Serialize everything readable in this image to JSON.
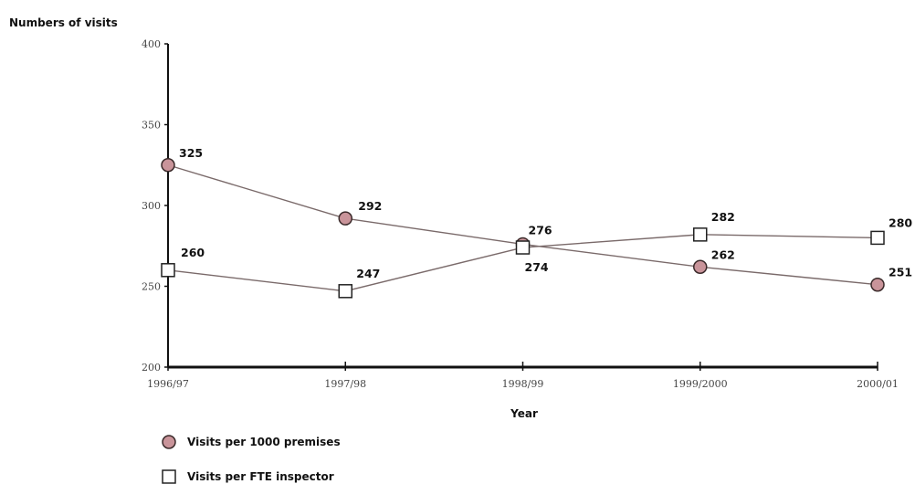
{
  "chart_data": {
    "type": "line",
    "ylabel": "Numbers of visits",
    "xlabel": "Year",
    "categories": [
      "1996/97",
      "1997/98",
      "1998/99",
      "1999/2000",
      "2000/01"
    ],
    "ylim": [
      200,
      400
    ],
    "yticks": [
      200,
      250,
      300,
      350,
      400
    ],
    "grid": false,
    "legend_position": "bottom-left",
    "series": [
      {
        "name": "Visits per 1000 premises",
        "marker": "circle",
        "color": "#c9949a",
        "values": [
          325,
          292,
          276,
          262,
          251
        ]
      },
      {
        "name": "Visits per FTE inspector",
        "marker": "square",
        "color": "#ffffff",
        "values": [
          260,
          247,
          274,
          282,
          280
        ]
      }
    ]
  }
}
